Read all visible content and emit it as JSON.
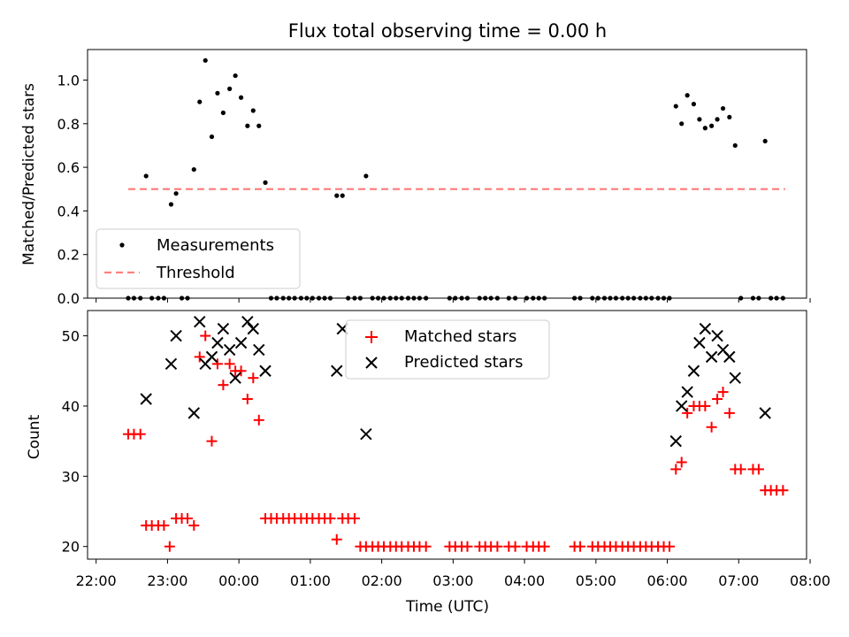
{
  "title": "Flux total observing time = 0.00 h",
  "colors": {
    "measure": "#000000",
    "threshold": "#ff8080",
    "matched": "#ff0000",
    "predicted": "#000000",
    "axis": "#000000",
    "legendBorder": "#cccccc"
  },
  "chart_data": [
    {
      "type": "scatter",
      "name": "ratio",
      "ylabel": "Matched/Predicted stars",
      "xlim": [
        -0.12,
        9.95
      ],
      "ylim": [
        0,
        1.14
      ],
      "yticks": [
        0.0,
        0.2,
        0.4,
        0.6,
        0.8,
        1.0
      ],
      "ytick_labels": [
        "0.0",
        "0.2",
        "0.4",
        "0.6",
        "0.8",
        "1.0"
      ],
      "threshold": {
        "y": 0.5,
        "x": [
          0.45,
          9.65
        ]
      },
      "legend": {
        "location": "lower-left",
        "entries": [
          "Measurements",
          "Threshold"
        ]
      },
      "measurements": {
        "x": [
          0.7,
          1.05,
          1.12,
          1.37,
          1.45,
          1.53,
          1.62,
          1.7,
          1.78,
          1.87,
          1.95,
          2.03,
          2.12,
          2.2,
          2.28,
          2.37,
          3.37,
          3.45,
          3.78,
          8.12,
          8.2,
          8.28,
          8.37,
          8.45,
          8.53,
          8.62,
          8.7,
          8.78,
          8.87,
          8.95,
          9.37
        ],
        "y": [
          0.56,
          0.43,
          0.48,
          0.59,
          0.9,
          1.09,
          0.74,
          0.94,
          0.85,
          0.96,
          1.02,
          0.92,
          0.79,
          0.86,
          0.79,
          0.53,
          0.47,
          0.47,
          0.56,
          0.88,
          0.8,
          0.93,
          0.89,
          0.82,
          0.78,
          0.79,
          0.82,
          0.87,
          0.83,
          0.7,
          0.72
        ]
      },
      "zeros_x": [
        0.45,
        0.53,
        0.62,
        0.78,
        0.87,
        0.95,
        1.2,
        1.28,
        2.45,
        2.53,
        2.62,
        2.7,
        2.78,
        2.87,
        2.95,
        3.03,
        3.12,
        3.2,
        3.28,
        3.53,
        3.62,
        3.7,
        3.87,
        3.95,
        4.03,
        4.12,
        4.2,
        4.28,
        4.37,
        4.45,
        4.53,
        4.62,
        4.95,
        5.03,
        5.12,
        5.2,
        5.37,
        5.45,
        5.53,
        5.62,
        5.78,
        5.87,
        6.03,
        6.12,
        6.2,
        6.28,
        6.7,
        6.78,
        6.95,
        7.03,
        7.12,
        7.2,
        7.28,
        7.37,
        7.45,
        7.53,
        7.62,
        7.7,
        7.78,
        7.87,
        7.95,
        8.03,
        9.03,
        9.2,
        9.28,
        9.45,
        9.53,
        9.62
      ]
    },
    {
      "type": "scatter",
      "name": "counts",
      "xlabel": "Time (UTC)",
      "ylabel": "Count",
      "xlim": [
        -0.12,
        9.95
      ],
      "ylim": [
        18.2,
        53.6
      ],
      "yticks": [
        20,
        30,
        40,
        50
      ],
      "xticks": [
        0,
        1,
        2,
        3,
        4,
        5,
        6,
        7,
        8,
        9,
        10
      ],
      "xtick_labels": [
        "22:00",
        "23:00",
        "00:00",
        "01:00",
        "02:00",
        "03:00",
        "04:00",
        "05:00",
        "06:00",
        "07:00",
        "08:00"
      ],
      "legend": {
        "location": "upper-center",
        "entries": [
          "Matched stars",
          "Predicted stars"
        ]
      },
      "matched": {
        "x": [
          0.45,
          0.53,
          0.62,
          0.7,
          0.78,
          0.87,
          0.95,
          1.03,
          1.12,
          1.2,
          1.28,
          1.37,
          1.45,
          1.53,
          1.62,
          1.7,
          1.78,
          1.87,
          1.95,
          2.03,
          2.12,
          2.2,
          2.28,
          2.37,
          2.45,
          2.53,
          2.62,
          2.7,
          2.78,
          2.87,
          2.95,
          3.03,
          3.12,
          3.2,
          3.28,
          3.37,
          3.45,
          3.53,
          3.62,
          3.7,
          3.78,
          3.87,
          3.95,
          4.03,
          4.12,
          4.2,
          4.28,
          4.37,
          4.45,
          4.53,
          4.62,
          4.95,
          5.03,
          5.12,
          5.2,
          5.37,
          5.45,
          5.53,
          5.62,
          5.78,
          5.87,
          6.03,
          6.12,
          6.2,
          6.28,
          6.7,
          6.78,
          6.95,
          7.03,
          7.12,
          7.2,
          7.28,
          7.37,
          7.45,
          7.53,
          7.62,
          7.7,
          7.78,
          7.87,
          7.95,
          8.03,
          8.12,
          8.2,
          8.28,
          8.37,
          8.45,
          8.53,
          8.62,
          8.7,
          8.78,
          8.87,
          8.95,
          9.03,
          9.2,
          9.28,
          9.37,
          9.45,
          9.53,
          9.62
        ],
        "y": [
          36,
          36,
          36,
          23,
          23,
          23,
          23,
          20,
          24,
          24,
          24,
          23,
          47,
          50,
          35,
          46,
          43,
          46,
          45,
          45,
          41,
          44,
          38,
          24,
          24,
          24,
          24,
          24,
          24,
          24,
          24,
          24,
          24,
          24,
          24,
          21,
          24,
          24,
          24,
          20,
          20,
          20,
          20,
          20,
          20,
          20,
          20,
          20,
          20,
          20,
          20,
          20,
          20,
          20,
          20,
          20,
          20,
          20,
          20,
          20,
          20,
          20,
          20,
          20,
          20,
          20,
          20,
          20,
          20,
          20,
          20,
          20,
          20,
          20,
          20,
          20,
          20,
          20,
          20,
          20,
          20,
          31,
          32,
          39,
          40,
          40,
          40,
          37,
          41,
          42,
          39,
          31,
          31,
          31,
          31,
          28,
          28,
          28,
          28
        ]
      },
      "predicted": {
        "x": [
          0.7,
          1.05,
          1.12,
          1.37,
          1.45,
          1.53,
          1.62,
          1.7,
          1.78,
          1.87,
          1.95,
          2.03,
          2.12,
          2.2,
          2.28,
          2.37,
          3.37,
          3.45,
          3.78,
          8.12,
          8.2,
          8.28,
          8.37,
          8.45,
          8.53,
          8.62,
          8.7,
          8.78,
          8.87,
          8.95,
          9.37
        ],
        "y": [
          41,
          46,
          50,
          39,
          52,
          46,
          47,
          49,
          51,
          48,
          44,
          49,
          52,
          51,
          48,
          45,
          45,
          51,
          36,
          35,
          40,
          42,
          45,
          49,
          51,
          47,
          50,
          48,
          47,
          44,
          39
        ]
      }
    }
  ]
}
